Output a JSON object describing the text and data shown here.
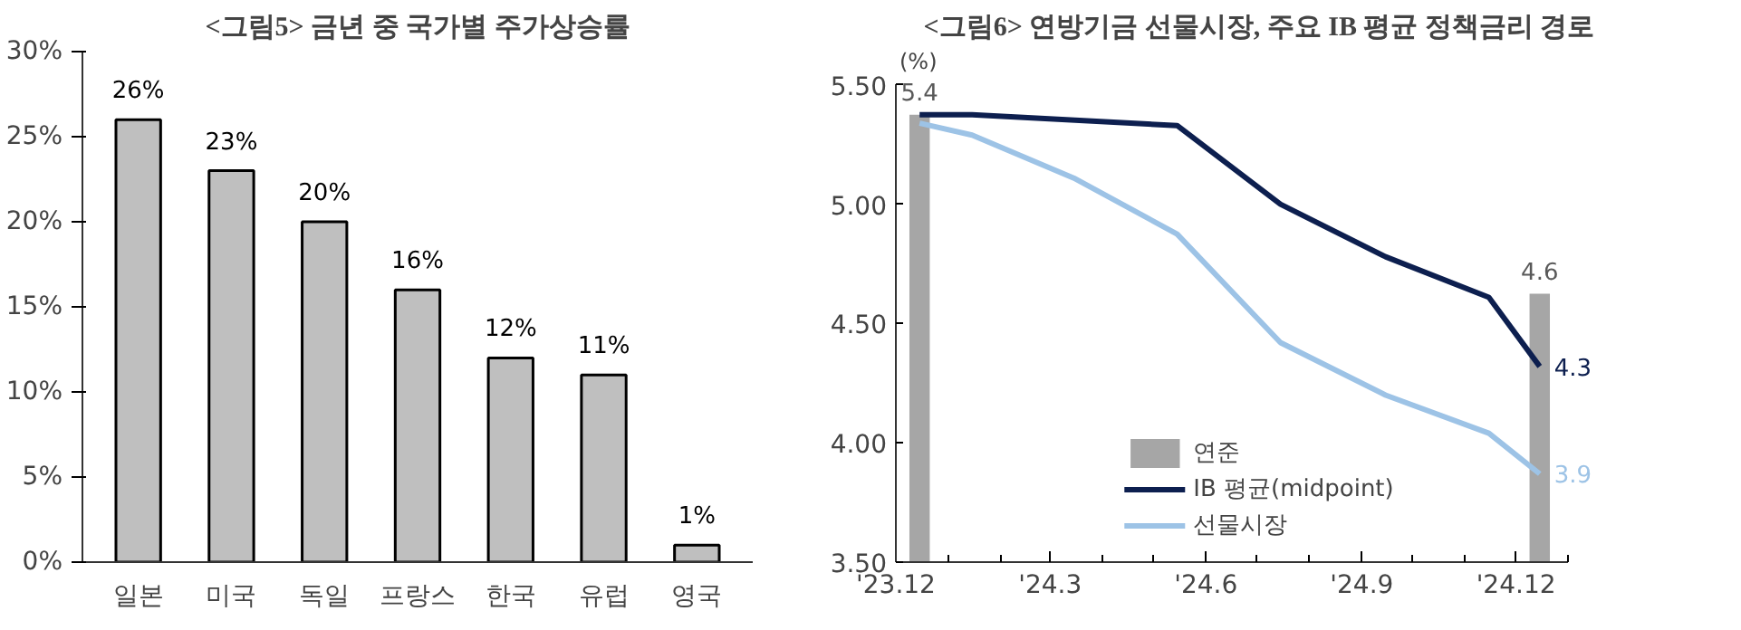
{
  "chart_data": [
    {
      "type": "bar",
      "title": "<그림5> 금년 중 국가별 주가상승률",
      "categories": [
        "일본",
        "미국",
        "독일",
        "프랑스",
        "한국",
        "유럽",
        "영국"
      ],
      "series": [
        {
          "color": "#bfbfbf",
          "values": [
            26,
            23,
            20,
            16,
            12,
            11,
            1
          ],
          "value_labels": [
            "26%",
            "23%",
            "20%",
            "16%",
            "12%",
            "11%",
            "1%"
          ]
        }
      ],
      "ylim": [
        0,
        30
      ],
      "yticks": [
        {
          "value": 0,
          "label": "0%"
        },
        {
          "value": 5,
          "label": "5%"
        },
        {
          "value": 10,
          "label": "10%"
        },
        {
          "value": 15,
          "label": "15%"
        },
        {
          "value": 20,
          "label": "20%"
        },
        {
          "value": 25,
          "label": "25%"
        },
        {
          "value": 30,
          "label": "30%"
        }
      ]
    },
    {
      "type": "line",
      "title": "<그림6> 연방기금 선물시장, 주요 IB 평균 정책금리 경로",
      "ylabel": "(%)",
      "legend": "bottom",
      "series": [
        {
          "type": "bar",
          "name": "연준",
          "color": "#a6a6a6",
          "x": [
            "2023-12-15",
            "2024-12-15"
          ],
          "values": [
            5.375,
            4.625
          ],
          "value_labels": [
            "5.4",
            "4.6"
          ]
        },
        {
          "name": "IB 평균(midpoint)",
          "color": "#0d1f4f",
          "x": [
            "2023-12-15",
            "2024-01-15",
            "2024-05-15",
            "2024-07-15",
            "2024-09-15",
            "2024-11-15",
            "2024-12-15"
          ],
          "values": [
            5.375,
            5.375,
            5.33,
            5.0,
            4.78,
            4.61,
            4.32
          ],
          "value_labels": [
            null,
            null,
            null,
            null,
            null,
            null,
            "4.3"
          ]
        },
        {
          "name": "선물시장",
          "color": "#9dc3e6",
          "x": [
            "2023-12-15",
            "2024-01-15",
            "2024-03-15",
            "2024-05-15",
            "2024-07-15",
            "2024-09-15",
            "2024-11-15",
            "2024-12-15"
          ],
          "values": [
            5.34,
            5.29,
            5.11,
            4.875,
            4.42,
            4.2,
            4.04,
            3.87
          ],
          "value_labels": [
            null,
            null,
            null,
            null,
            null,
            null,
            null,
            "3.9"
          ]
        }
      ],
      "xlim": [
        "2023-12",
        "2025-01"
      ],
      "xticks": [
        {
          "value": "2023-12",
          "label": "'23.12"
        },
        {
          "value": "2024-03",
          "label": "'24.3"
        },
        {
          "value": "2024-06",
          "label": "'24.6"
        },
        {
          "value": "2024-09",
          "label": "'24.9"
        },
        {
          "value": "2024-12",
          "label": "'24.12"
        }
      ],
      "ylim": [
        3.5,
        5.5
      ],
      "yticks": [
        {
          "value": 3.5,
          "label": "3.50"
        },
        {
          "value": 4.0,
          "label": "4.00"
        },
        {
          "value": 4.5,
          "label": "4.50"
        },
        {
          "value": 5.0,
          "label": "5.00"
        },
        {
          "value": 5.5,
          "label": "5.50"
        }
      ]
    }
  ]
}
